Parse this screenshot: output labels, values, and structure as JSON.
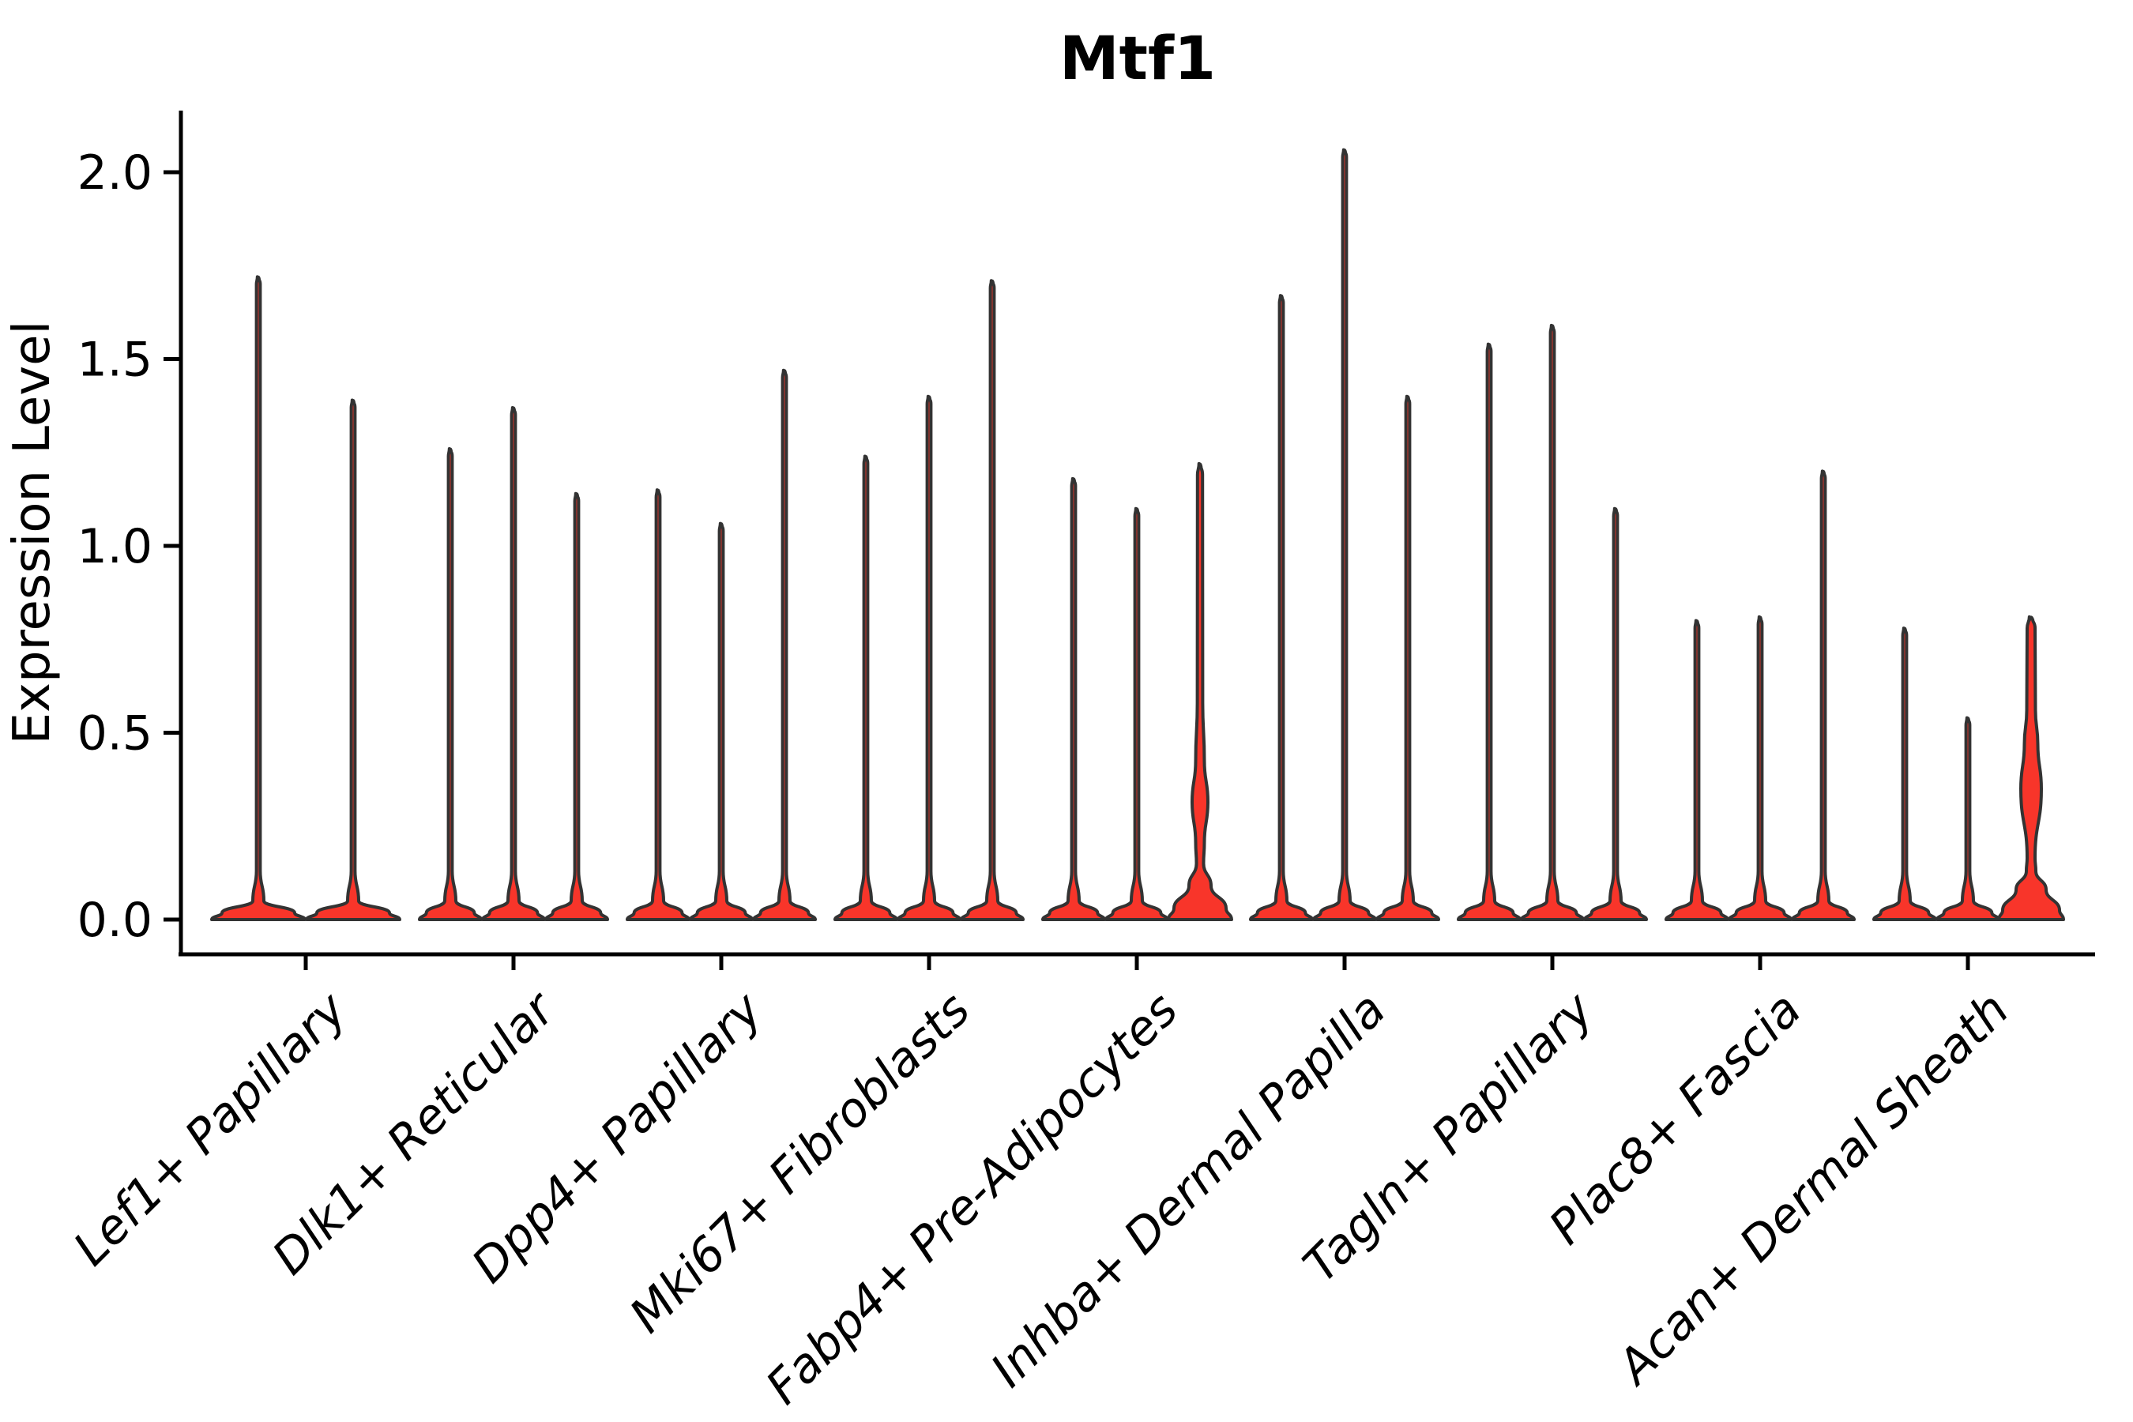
{
  "title": "Mtf1",
  "chart_data": {
    "type": "violin",
    "title": "Mtf1",
    "xlabel": "",
    "ylabel": "Expression Level",
    "ytick_labels": [
      "0.0",
      "0.5",
      "1.0",
      "1.5",
      "2.0"
    ],
    "ytick_values": [
      0.0,
      0.5,
      1.0,
      1.5,
      2.0
    ],
    "ylim": [
      -0.09,
      2.17
    ],
    "grid": false,
    "legend": "none",
    "violin_fill_color": "#f8352a",
    "violin_edge_color": "#333333",
    "axis_color": "#000000",
    "categories": [
      "Lef1+ Papillary",
      "Dlk1+ Reticular",
      "Dpp4+ Papillary",
      "Mki67+ Fibroblasts",
      "Fabp4+ Pre-Adipocytes",
      "Inhba+ Dermal Papilla",
      "Tagln+ Papillary",
      "Plac8+ Fascia",
      "Acan+ Dermal Sheath"
    ],
    "groups": [
      {
        "label": "Lef1+ Papillary",
        "violins": [
          {
            "max": 1.72
          },
          {
            "max": 1.39
          }
        ]
      },
      {
        "label": "Dlk1+ Reticular",
        "violins": [
          {
            "max": 1.26
          },
          {
            "max": 1.37
          },
          {
            "max": 1.14
          }
        ]
      },
      {
        "label": "Dpp4+ Papillary",
        "violins": [
          {
            "max": 1.15
          },
          {
            "max": 1.06
          },
          {
            "max": 1.47
          }
        ]
      },
      {
        "label": "Mki67+ Fibroblasts",
        "violins": [
          {
            "max": 1.24
          },
          {
            "max": 1.4
          },
          {
            "max": 1.71
          }
        ]
      },
      {
        "label": "Fabp4+ Pre-Adipocytes",
        "violins": [
          {
            "max": 1.18
          },
          {
            "max": 1.1
          },
          {
            "max": 1.22,
            "highlight": true,
            "profile": [
              [
                1.22,
                1.3
              ],
              [
                1.19,
                3.2
              ],
              [
                0.58,
                3.4
              ],
              [
                0.425,
                5.5
              ],
              [
                0.315,
                10
              ],
              [
                0.205,
                5.5
              ],
              [
                0.15,
                4.5
              ],
              [
                0.09,
                14
              ],
              [
                0.03,
                33
              ],
              [
                0,
                40
              ]
            ]
          }
        ]
      },
      {
        "label": "Inhba+ Dermal Papilla",
        "violins": [
          {
            "max": 1.67
          },
          {
            "max": 2.06
          },
          {
            "max": 1.4
          }
        ]
      },
      {
        "label": "Tagln+ Papillary",
        "violins": [
          {
            "max": 1.54
          },
          {
            "max": 1.59
          },
          {
            "max": 1.1
          }
        ]
      },
      {
        "label": "Plac8+ Fascia",
        "violins": [
          {
            "max": 0.8
          },
          {
            "max": 0.81
          },
          {
            "max": 1.2
          }
        ]
      },
      {
        "label": "Acan+ Dermal Sheath",
        "violins": [
          {
            "max": 0.78
          },
          {
            "max": 0.54
          },
          {
            "max": 0.8,
            "highlight": true,
            "profile": [
              [
                0.81,
                2.2
              ],
              [
                0.78,
                5
              ],
              [
                0.56,
                5.5
              ],
              [
                0.47,
                8.5
              ],
              [
                0.35,
                13
              ],
              [
                0.165,
                5
              ],
              [
                0.13,
                6
              ],
              [
                0.08,
                19
              ],
              [
                0.025,
                36
              ],
              [
                0,
                41
              ]
            ]
          }
        ]
      }
    ]
  }
}
